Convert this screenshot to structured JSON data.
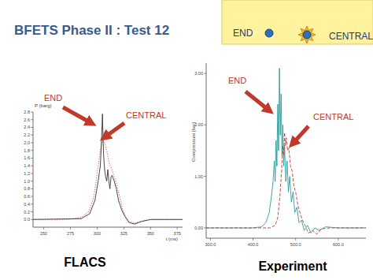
{
  "slide": {
    "title": "BFETS Phase II : Test 12",
    "locations": [
      "END",
      "CENTRAL"
    ]
  },
  "chart_data": [
    {
      "type": "line",
      "title": "FLACS",
      "x_label": "t (ms)",
      "y_label": "P (barg)",
      "xlim": [
        240,
        380
      ],
      "xticks": [
        250,
        275,
        300,
        325,
        350,
        375
      ],
      "ylim": [
        -0.2,
        2.8
      ],
      "yticks": [
        {
          "value": 0,
          "label": "0.0"
        },
        0.2,
        0.4,
        0.6,
        0.8,
        {
          "value": 1,
          "label": "1.0"
        },
        1.2,
        1.4,
        1.6,
        1.8,
        {
          "value": 2,
          "label": "2.0"
        },
        2.2,
        2.4,
        2.6,
        2.8
      ],
      "grid": false,
      "series": [
        {
          "name": "END",
          "color": "#e07a8a",
          "line_style": "dotted",
          "x": [
            240,
            270,
            285,
            292,
            297,
            300,
            303,
            305,
            307,
            309,
            311,
            313,
            315,
            318,
            321,
            324,
            327,
            330,
            335,
            340,
            350,
            380
          ],
          "values": [
            0,
            0,
            0.05,
            0.2,
            0.6,
            1.2,
            1.8,
            2.05,
            2.0,
            1.8,
            1.5,
            1.35,
            1.2,
            0.95,
            0.6,
            0.25,
            0.05,
            -0.05,
            -0.1,
            -0.05,
            0,
            0
          ]
        },
        {
          "name": "CENTRAL",
          "color": "#333333",
          "line_style": "solid",
          "x": [
            240,
            285,
            293,
            298,
            301,
            303,
            304,
            305,
            306,
            307,
            308,
            309,
            310,
            311,
            312,
            313,
            314,
            316,
            318,
            320,
            323,
            326,
            330,
            335,
            342,
            350,
            380
          ],
          "values": [
            0,
            0.02,
            0.15,
            0.5,
            1.0,
            1.4,
            2.0,
            2.75,
            1.7,
            1.3,
            1.1,
            1.0,
            1.3,
            1.0,
            0.8,
            1.1,
            1.15,
            1.0,
            0.8,
            0.5,
            0.25,
            0.08,
            -0.08,
            -0.12,
            -0.05,
            0,
            0
          ]
        }
      ]
    },
    {
      "type": "line",
      "title": "Experiment",
      "y_label": "Overpressure [bar]",
      "xlim": [
        290,
        665
      ],
      "xticks": [
        {
          "value": 300,
          "label": "300.0"
        },
        {
          "value": 400,
          "label": "400.0"
        },
        {
          "value": 500,
          "label": "500.0"
        },
        {
          "value": 600,
          "label": "600.0"
        }
      ],
      "ylim": [
        -0.2,
        3.2
      ],
      "yticks": [
        {
          "value": 0,
          "label": "0.00"
        },
        {
          "value": 1,
          "label": "1.00"
        },
        {
          "value": 2,
          "label": "2.00"
        },
        {
          "value": 3,
          "label": "3.00"
        }
      ],
      "grid": false,
      "series": [
        {
          "name": "END",
          "color": "#2a9d9a",
          "line_style": "solid",
          "x": [
            290,
            400,
            420,
            430,
            438,
            443,
            447,
            450,
            452,
            454,
            456,
            458,
            460,
            462,
            464,
            466,
            468,
            470,
            472,
            474,
            477,
            480,
            483,
            486,
            490,
            494,
            498,
            503,
            508,
            514,
            520,
            528,
            536,
            545,
            555,
            570,
            600,
            665
          ],
          "values": [
            0,
            0,
            0.02,
            0.1,
            0.3,
            0.6,
            0.9,
            1.3,
            0.9,
            1.7,
            1.2,
            2.4,
            1.5,
            3.1,
            1.8,
            2.6,
            1.4,
            2.0,
            1.2,
            1.6,
            0.9,
            1.3,
            0.7,
            1.0,
            0.5,
            0.7,
            0.3,
            0.4,
            0.1,
            0.15,
            -0.05,
            0.05,
            -0.1,
            0,
            -0.05,
            0.02,
            0,
            0
          ]
        },
        {
          "name": "CENTRAL",
          "color": "#c0392b",
          "line_style": "dashed",
          "x": [
            290,
            440,
            452,
            458,
            463,
            467,
            470,
            472,
            474,
            476,
            478,
            481,
            484,
            488,
            492,
            496,
            500,
            505,
            510,
            516,
            522,
            530,
            540,
            550,
            560,
            580,
            665
          ],
          "values": [
            0,
            0,
            0.05,
            0.2,
            0.6,
            1.1,
            1.6,
            1.4,
            1.85,
            1.6,
            1.75,
            1.5,
            1.55,
            1.2,
            1.1,
            0.8,
            0.7,
            0.45,
            0.3,
            0.15,
            0.05,
            -0.1,
            -0.05,
            -0.12,
            -0.02,
            0,
            0
          ]
        }
      ]
    }
  ]
}
